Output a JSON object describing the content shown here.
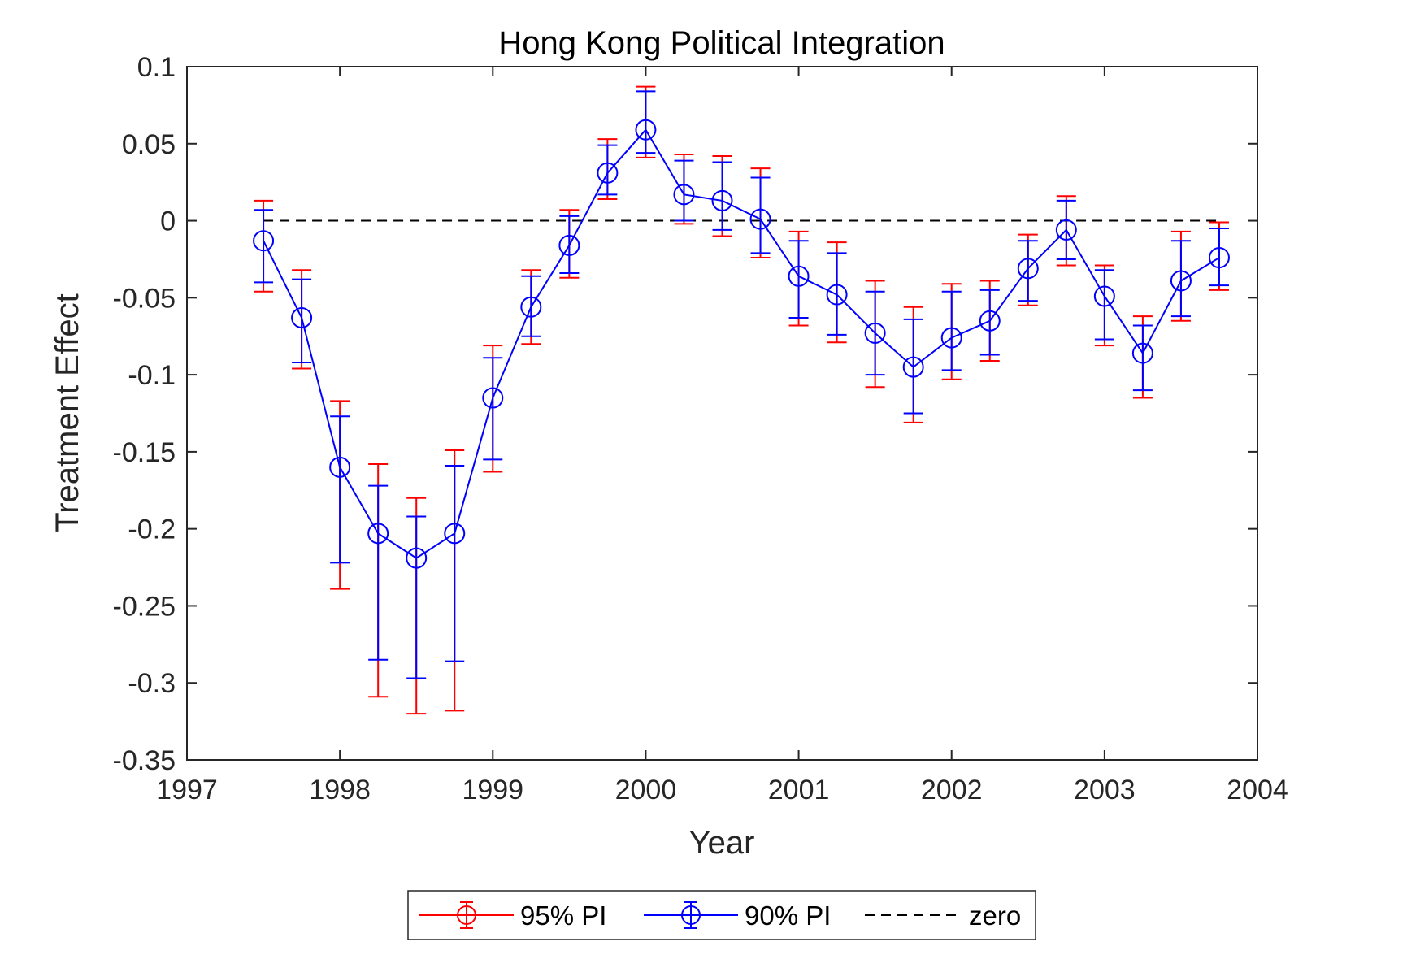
{
  "chart_data": {
    "type": "line",
    "title": "Hong Kong Political Integration",
    "xlabel": "Year",
    "ylabel": "Treatment Effect",
    "xlim": [
      1997,
      2004
    ],
    "ylim": [
      -0.35,
      0.1
    ],
    "xticks": [
      1997,
      1998,
      1999,
      2000,
      2001,
      2002,
      2003,
      2004
    ],
    "yticks": [
      0.1,
      0.05,
      0,
      -0.05,
      -0.1,
      -0.15,
      -0.2,
      -0.25,
      -0.3,
      -0.35
    ],
    "ytick_labels": [
      "0.1",
      "0.05",
      "0",
      "-0.05",
      "-0.1",
      "-0.15",
      "-0.2",
      "-0.25",
      "-0.3",
      "-0.35"
    ],
    "grid": false,
    "legend_position": "bottom-outside",
    "x": [
      1997.5,
      1997.75,
      1998.0,
      1998.25,
      1998.5,
      1998.75,
      1999.0,
      1999.25,
      1999.5,
      1999.75,
      2000.0,
      2000.25,
      2000.5,
      2000.75,
      2001.0,
      2001.25,
      2001.5,
      2001.75,
      2002.0,
      2002.25,
      2002.5,
      2002.75,
      2003.0,
      2003.25,
      2003.5,
      2003.75
    ],
    "estimate": [
      -0.013,
      -0.063,
      -0.16,
      -0.203,
      -0.219,
      -0.203,
      -0.115,
      -0.056,
      -0.016,
      0.031,
      0.059,
      0.017,
      0.013,
      0.001,
      -0.036,
      -0.048,
      -0.073,
      -0.095,
      -0.076,
      -0.065,
      -0.031,
      -0.006,
      -0.049,
      -0.086,
      -0.039,
      -0.024
    ],
    "series": [
      {
        "name": "95% PI",
        "color": "#ff0000",
        "lower": [
          -0.046,
          -0.096,
          -0.239,
          -0.309,
          -0.32,
          -0.318,
          -0.163,
          -0.08,
          -0.037,
          0.014,
          0.041,
          -0.002,
          -0.01,
          -0.024,
          -0.068,
          -0.079,
          -0.108,
          -0.131,
          -0.103,
          -0.091,
          -0.055,
          -0.029,
          -0.081,
          -0.115,
          -0.065,
          -0.045
        ],
        "upper": [
          0.013,
          -0.032,
          -0.117,
          -0.158,
          -0.18,
          -0.149,
          -0.081,
          -0.032,
          0.007,
          0.053,
          0.087,
          0.043,
          0.042,
          0.034,
          -0.007,
          -0.014,
          -0.039,
          -0.056,
          -0.041,
          -0.039,
          -0.009,
          0.016,
          -0.029,
          -0.062,
          -0.007,
          -0.001
        ]
      },
      {
        "name": "90% PI",
        "color": "#0000ff",
        "lower": [
          -0.04,
          -0.092,
          -0.222,
          -0.285,
          -0.297,
          -0.286,
          -0.155,
          -0.075,
          -0.034,
          0.017,
          0.044,
          0.0,
          -0.006,
          -0.021,
          -0.063,
          -0.074,
          -0.1,
          -0.125,
          -0.097,
          -0.087,
          -0.052,
          -0.025,
          -0.077,
          -0.11,
          -0.062,
          -0.042
        ],
        "upper": [
          0.007,
          -0.038,
          -0.127,
          -0.172,
          -0.192,
          -0.159,
          -0.089,
          -0.036,
          0.003,
          0.049,
          0.084,
          0.039,
          0.038,
          0.028,
          -0.013,
          -0.021,
          -0.046,
          -0.064,
          -0.046,
          -0.045,
          -0.013,
          0.013,
          -0.032,
          -0.068,
          -0.013,
          -0.005
        ]
      },
      {
        "name": "zero",
        "color": "#000000",
        "style": "dashed",
        "value": 0
      }
    ]
  }
}
